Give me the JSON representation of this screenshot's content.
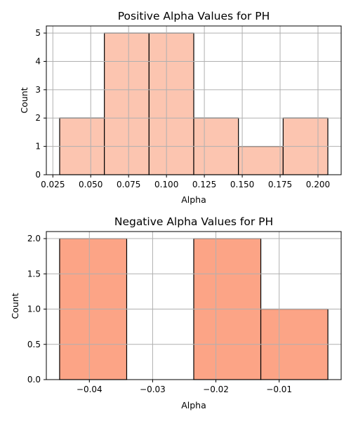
{
  "chart_data": [
    {
      "type": "bar",
      "title": "Positive Alpha Values for PH",
      "xlabel": "Alpha",
      "ylabel": "Count",
      "color": "#fcc5b0",
      "bin_edges": [
        0.0295,
        0.059,
        0.0885,
        0.118,
        0.1475,
        0.177,
        0.2065
      ],
      "values": [
        2,
        5,
        5,
        2,
        1,
        2
      ],
      "xlim": [
        0.0207,
        0.2153
      ],
      "ylim": [
        0,
        5.25
      ],
      "xticks": [
        0.025,
        0.05,
        0.075,
        0.1,
        0.125,
        0.15,
        0.175,
        0.2
      ],
      "xtick_labels": [
        "0.025",
        "0.050",
        "0.075",
        "0.100",
        "0.125",
        "0.150",
        "0.175",
        "0.200"
      ],
      "yticks": [
        0,
        1,
        2,
        3,
        4,
        5
      ],
      "ytick_labels": [
        "0",
        "1",
        "2",
        "3",
        "4",
        "5"
      ],
      "grid": true
    },
    {
      "type": "bar",
      "title": "Negative Alpha Values for PH",
      "xlabel": "Alpha",
      "ylabel": "Count",
      "color": "#fca486",
      "bin_edges": [
        -0.0447,
        -0.0341,
        -0.0235,
        -0.0129,
        -0.0023
      ],
      "values": [
        2,
        0,
        2,
        1
      ],
      "xlim": [
        -0.0468,
        -0.0002
      ],
      "ylim": [
        0,
        2.1
      ],
      "xticks": [
        -0.04,
        -0.03,
        -0.02,
        -0.01
      ],
      "xtick_labels": [
        "−0.04",
        "−0.03",
        "−0.02",
        "−0.01"
      ],
      "yticks": [
        0,
        0.5,
        1.0,
        1.5,
        2.0
      ],
      "ytick_labels": [
        "0.0",
        "0.5",
        "1.0",
        "1.5",
        "2.0"
      ],
      "grid": true
    }
  ]
}
